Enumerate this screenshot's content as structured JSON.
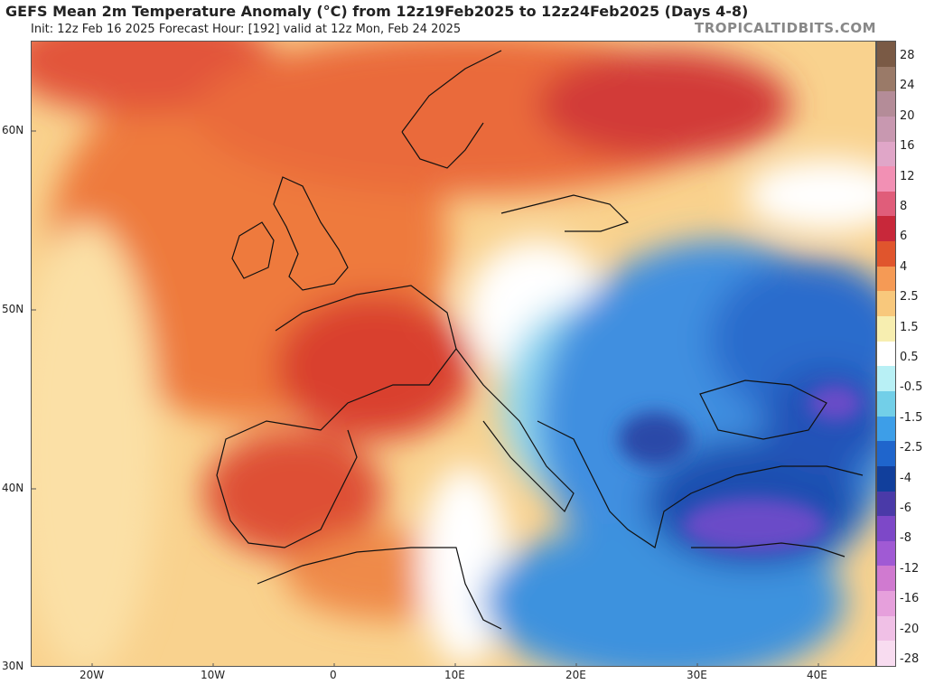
{
  "header": {
    "title": "GEFS Mean 2m Temperature Anomaly (°C) from 12z19Feb2025 to 12z24Feb2025 (Days 4-8)",
    "subtitle": "Init: 12z Feb 16 2025   Forecast Hour: [192]   valid at 12z Mon, Feb 24 2025",
    "brand": "TROPICALTIDBITS.COM"
  },
  "axes": {
    "lat_labels": [
      "60N",
      "50N",
      "40N",
      "30N"
    ],
    "lon_labels": [
      "20W",
      "10W",
      "0",
      "10E",
      "20E",
      "30E",
      "40E"
    ]
  },
  "colorbar": {
    "labels": [
      "28",
      "24",
      "20",
      "16",
      "12",
      "8",
      "6",
      "4",
      "2.5",
      "1.5",
      "0.5",
      "-0.5",
      "-1.5",
      "-2.5",
      "-4",
      "-6",
      "-8",
      "-12",
      "-16",
      "-20",
      "-28"
    ],
    "colors": [
      "#7a5a45",
      "#9a7a68",
      "#b48c98",
      "#c898b0",
      "#e0a6c8",
      "#f290b4",
      "#e05d7a",
      "#c8283a",
      "#e0552d",
      "#f59a55",
      "#f8c87c",
      "#f7eeb0",
      "#ffffff",
      "#b8f0f5",
      "#72cfe8",
      "#3d9ee8",
      "#1f65cc",
      "#113f9c",
      "#4a3aa8",
      "#7d48c8",
      "#a05ad4",
      "#d07ad0",
      "#e6a0dc",
      "#f0c0e6",
      "#f8dcf0"
    ]
  }
}
